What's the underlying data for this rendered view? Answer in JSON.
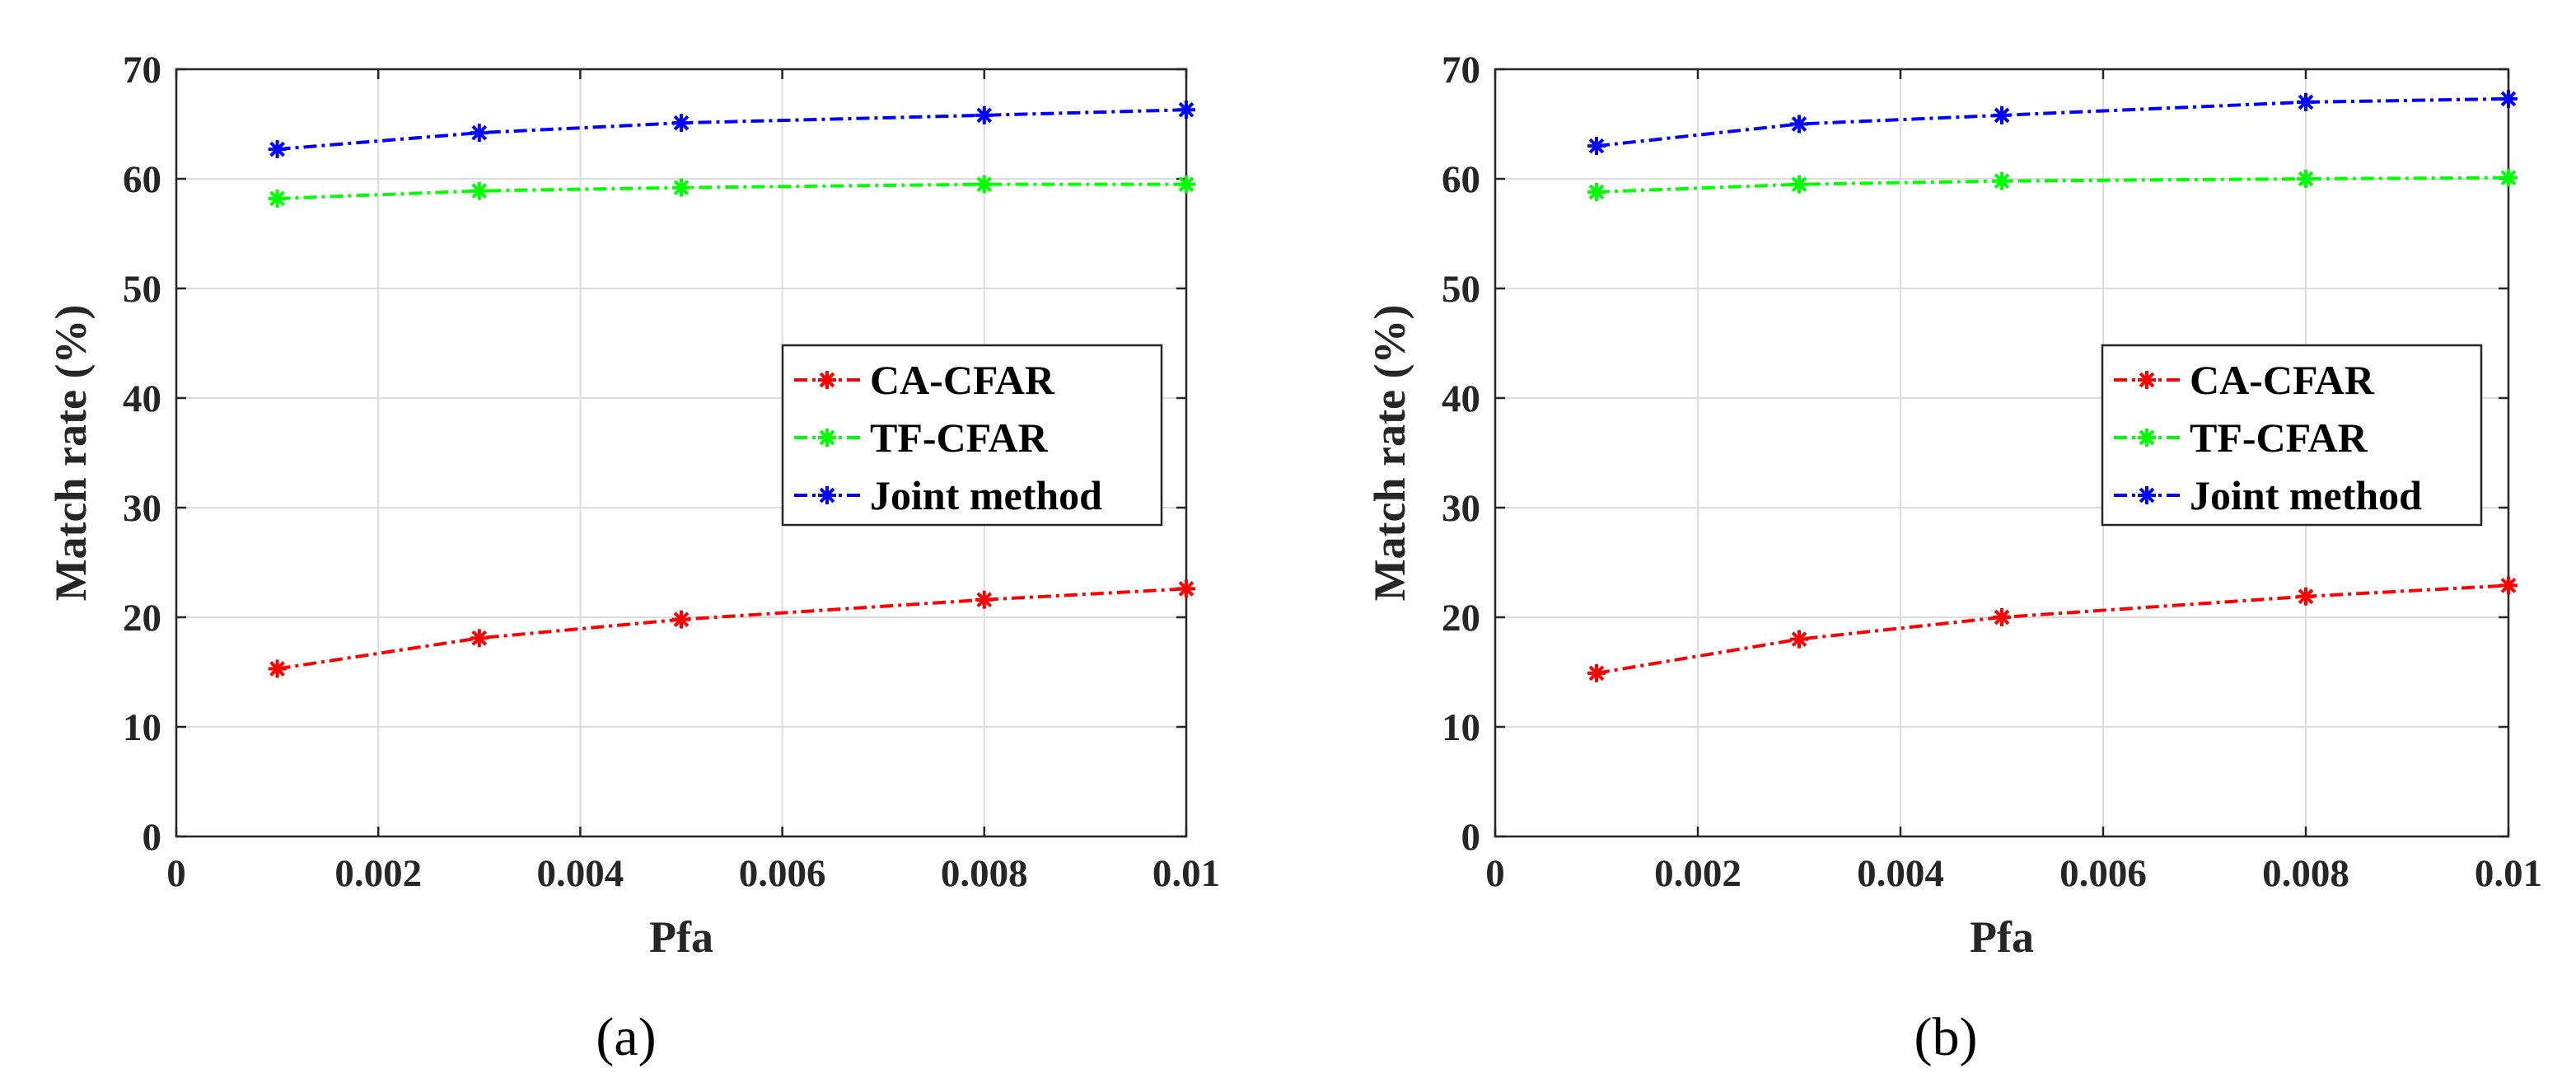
{
  "chart_data": [
    {
      "type": "line",
      "caption": "(a)",
      "xlabel": "Pfa",
      "ylabel": "Match rate (%)",
      "xlim": [
        0,
        0.01
      ],
      "ylim": [
        0,
        70
      ],
      "xticks": [
        0,
        0.002,
        0.004,
        0.006,
        0.008,
        0.01
      ],
      "xtick_labels": [
        "0",
        "0.002",
        "0.004",
        "0.006",
        "0.008",
        "0.01"
      ],
      "yticks": [
        0,
        10,
        20,
        30,
        40,
        50,
        60,
        70
      ],
      "ytick_labels": [
        "0",
        "10",
        "20",
        "30",
        "40",
        "50",
        "60",
        "70"
      ],
      "grid": true,
      "legend_position": "center-right",
      "x": [
        0.001,
        0.003,
        0.005,
        0.008,
        0.01
      ],
      "series": [
        {
          "name": "CA-CFAR",
          "color": "#ff0000",
          "values": [
            15.3,
            18.1,
            19.8,
            21.6,
            22.6
          ]
        },
        {
          "name": "TF-CFAR",
          "color": "#00ff00",
          "values": [
            58.2,
            58.9,
            59.2,
            59.5,
            59.5
          ]
        },
        {
          "name": "Joint method",
          "color": "#0000ff",
          "values": [
            62.7,
            64.2,
            65.1,
            65.8,
            66.3
          ]
        }
      ]
    },
    {
      "type": "line",
      "caption": "(b)",
      "xlabel": "Pfa",
      "ylabel": "Match rate (%)",
      "xlim": [
        0,
        0.01
      ],
      "ylim": [
        0,
        70
      ],
      "xticks": [
        0,
        0.002,
        0.004,
        0.006,
        0.008,
        0.01
      ],
      "xtick_labels": [
        "0",
        "0.002",
        "0.004",
        "0.006",
        "0.008",
        "0.01"
      ],
      "yticks": [
        0,
        10,
        20,
        30,
        40,
        50,
        60,
        70
      ],
      "ytick_labels": [
        "0",
        "10",
        "20",
        "30",
        "40",
        "50",
        "60",
        "70"
      ],
      "grid": true,
      "legend_position": "center-right",
      "x": [
        0.001,
        0.003,
        0.005,
        0.008,
        0.01
      ],
      "series": [
        {
          "name": "CA-CFAR",
          "color": "#ff0000",
          "values": [
            14.9,
            18.0,
            20.0,
            21.9,
            22.9
          ]
        },
        {
          "name": "TF-CFAR",
          "color": "#00ff00",
          "values": [
            58.8,
            59.5,
            59.8,
            60.0,
            60.1
          ]
        },
        {
          "name": "Joint method",
          "color": "#0000ff",
          "values": [
            63.0,
            65.0,
            65.8,
            67.0,
            67.3
          ]
        }
      ]
    }
  ]
}
